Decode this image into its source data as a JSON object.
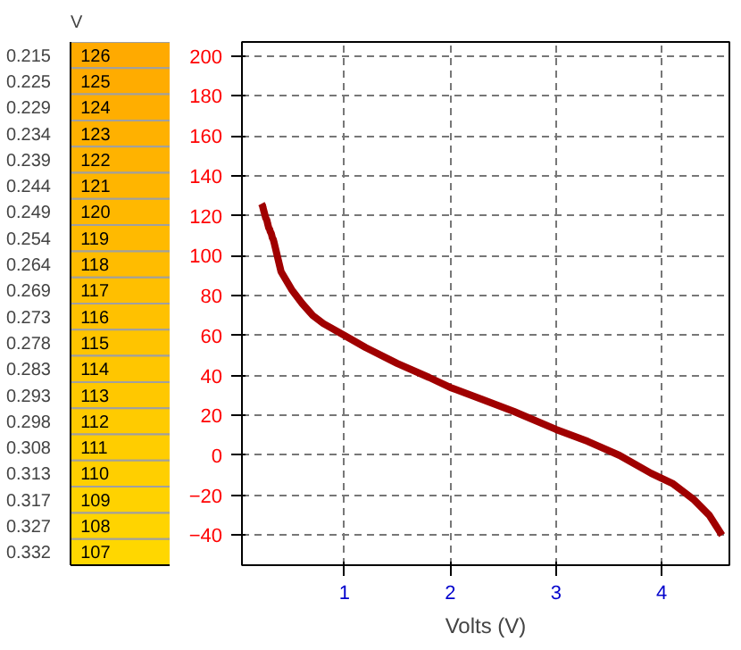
{
  "chart_data": [
    {
      "type": "heatmap",
      "title": "V",
      "categories": [
        null
      ],
      "data_labels": true,
      "y_categories": [
        "0.215",
        "0.225",
        "0.229",
        "0.234",
        "0.239",
        "0.244",
        "0.249",
        "0.254",
        "0.264",
        "0.269",
        "0.273",
        "0.278",
        "0.283",
        "0.293",
        "0.298",
        "0.308",
        "0.313",
        "0.317",
        "0.327",
        "0.332"
      ],
      "cells": [
        [
          126
        ],
        [
          125
        ],
        [
          124
        ],
        [
          123
        ],
        [
          122
        ],
        [
          121
        ],
        [
          120
        ],
        [
          119
        ],
        [
          118
        ],
        [
          117
        ],
        [
          116
        ],
        [
          115
        ],
        [
          114
        ],
        [
          113
        ],
        [
          112
        ],
        [
          111
        ],
        [
          110
        ],
        [
          109
        ],
        [
          108
        ],
        [
          107
        ]
      ]
    },
    {
      "type": "line",
      "xlabel": "Volts (V)",
      "x": [
        0.215,
        0.225,
        0.229,
        0.234,
        0.239,
        0.244,
        0.249,
        0.254,
        0.264,
        0.269,
        0.273,
        0.278,
        0.283,
        0.293,
        0.298,
        0.308,
        0.313,
        0.317,
        0.327,
        0.332,
        0.4,
        0.5,
        0.6,
        0.7,
        0.8,
        1.0,
        1.2,
        1.5,
        1.8,
        2.0,
        2.3,
        2.6,
        3.0,
        3.3,
        3.6,
        3.9,
        4.1,
        4.3,
        4.45,
        4.57
      ],
      "series": [
        {
          "color": "#a00000",
          "values": [
            126,
            125,
            124,
            123,
            122,
            121,
            120,
            119,
            118,
            117,
            116,
            115,
            114,
            113,
            112,
            111,
            110,
            109,
            108,
            107,
            92,
            83,
            76,
            70,
            66,
            60,
            54,
            46,
            39,
            34,
            28,
            22,
            13,
            7,
            0,
            -9,
            -14,
            -22,
            -30,
            -40
          ]
        }
      ],
      "xlim": [
        0.03,
        4.64
      ],
      "xticks": [
        1,
        2,
        3,
        4
      ],
      "ylim": [
        -55,
        207
      ],
      "yticks": [
        -40,
        -20,
        0,
        20,
        40,
        60,
        80,
        100,
        120,
        140,
        160,
        180,
        200
      ],
      "grid": true,
      "line_style": "solid"
    }
  ]
}
